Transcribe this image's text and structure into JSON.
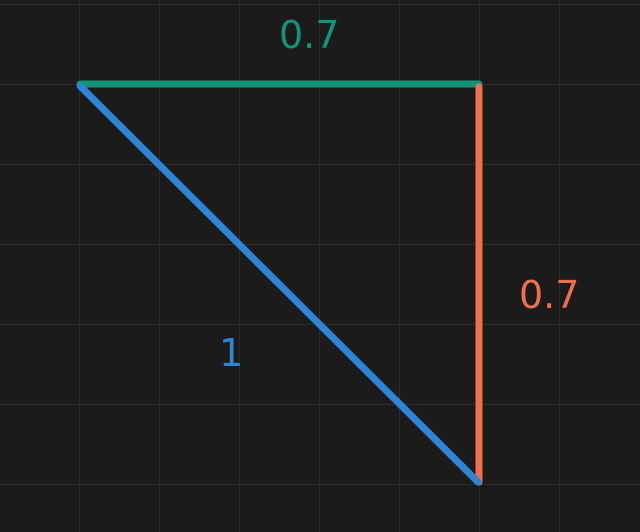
{
  "diagram": {
    "sides": {
      "top": {
        "label": "0.7",
        "color": "#139479"
      },
      "right": {
        "label": "0.7",
        "color": "#f06f50"
      },
      "hypotenuse": {
        "label": "1",
        "color": "#2e85d6"
      }
    },
    "grid": {
      "color": "#2c2c2c",
      "show": true
    },
    "background": "#1b1b1b"
  }
}
